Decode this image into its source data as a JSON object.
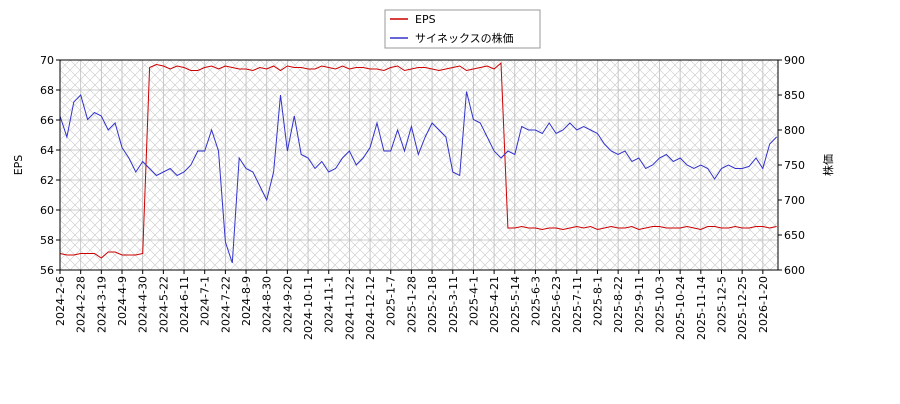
{
  "chart_data": {
    "type": "line",
    "categories": [
      "2024-2-6",
      null,
      null,
      "2024-2-28",
      null,
      null,
      "2024-3-19",
      null,
      null,
      "2024-4-9",
      null,
      null,
      "2024-4-30",
      null,
      null,
      "2024-5-22",
      null,
      null,
      "2024-6-11",
      null,
      null,
      "2024-7-1",
      null,
      null,
      "2024-7-22",
      null,
      null,
      "2024-8-9",
      null,
      null,
      "2024-8-30",
      null,
      null,
      "2024-9-20",
      null,
      null,
      "2024-10-11",
      null,
      null,
      "2024-11-1",
      null,
      null,
      "2024-11-22",
      null,
      null,
      "2024-12-12",
      null,
      null,
      "2025-1-7",
      null,
      null,
      "2025-1-28",
      null,
      null,
      "2025-2-18",
      null,
      null,
      "2025-3-11",
      null,
      null,
      "2025-4-1",
      null,
      null,
      "2025-4-21",
      null,
      null,
      "2025-5-14",
      null,
      null,
      "2025-6-3",
      null,
      null,
      "2025-6-23",
      null,
      null,
      "2025-7-11",
      null,
      null,
      "2025-8-1",
      null,
      null,
      "2025-8-22",
      null,
      null,
      "2025-9-11",
      null,
      null,
      "2025-10-3",
      null,
      null,
      "2025-10-24",
      null,
      null,
      "2025-11-14",
      null,
      null,
      "2025-12-5",
      null,
      null,
      "2025-12-25",
      null,
      null,
      "2026-1-20",
      null,
      null
    ],
    "series": [
      {
        "name": "EPS",
        "color": "#cc0000",
        "axis": "y",
        "values": [
          57.1,
          57.0,
          57.0,
          57.1,
          57.1,
          57.1,
          56.8,
          57.2,
          57.2,
          57.0,
          57.0,
          57.0,
          57.1,
          69.5,
          69.7,
          69.6,
          69.4,
          69.6,
          69.5,
          69.3,
          69.3,
          69.5,
          69.6,
          69.4,
          69.6,
          69.5,
          69.4,
          69.4,
          69.3,
          69.5,
          69.4,
          69.6,
          69.3,
          69.6,
          69.5,
          69.5,
          69.4,
          69.4,
          69.6,
          69.5,
          69.4,
          69.6,
          69.4,
          69.5,
          69.5,
          69.4,
          69.4,
          69.3,
          69.5,
          69.6,
          69.3,
          69.4,
          69.5,
          69.5,
          69.4,
          69.3,
          69.4,
          69.5,
          69.6,
          69.3,
          69.4,
          69.5,
          69.6,
          69.4,
          69.8,
          58.8,
          58.8,
          58.9,
          58.8,
          58.8,
          58.7,
          58.8,
          58.8,
          58.7,
          58.8,
          58.9,
          58.8,
          58.9,
          58.7,
          58.8,
          58.9,
          58.8,
          58.8,
          58.9,
          58.7,
          58.8,
          58.9,
          58.9,
          58.8,
          58.8,
          58.8,
          58.9,
          58.8,
          58.7,
          58.9,
          58.9,
          58.8,
          58.8,
          58.9,
          58.8,
          58.8,
          58.9,
          58.9,
          58.8,
          58.9
        ]
      },
      {
        "name": "サイネックスの株価",
        "color": "#3333cc",
        "axis": "y2",
        "values": [
          820,
          790,
          840,
          850,
          815,
          825,
          820,
          800,
          810,
          775,
          760,
          740,
          755,
          745,
          735,
          740,
          745,
          735,
          740,
          750,
          770,
          770,
          800,
          770,
          640,
          610,
          760,
          745,
          740,
          720,
          700,
          740,
          850,
          770,
          820,
          765,
          760,
          745,
          755,
          740,
          745,
          760,
          770,
          750,
          760,
          775,
          810,
          770,
          770,
          800,
          770,
          805,
          765,
          790,
          810,
          800,
          790,
          740,
          735,
          855,
          815,
          810,
          790,
          770,
          760,
          770,
          765,
          805,
          800,
          800,
          795,
          810,
          795,
          800,
          810,
          800,
          805,
          800,
          795,
          780,
          770,
          765,
          770,
          755,
          760,
          745,
          750,
          760,
          765,
          755,
          760,
          750,
          745,
          750,
          745,
          730,
          745,
          750,
          745,
          745,
          748,
          760,
          745,
          780,
          790
        ]
      }
    ],
    "ylabel": "EPS",
    "y2label": "株価",
    "ylim": [
      56,
      70
    ],
    "yticks": [
      56,
      58,
      60,
      62,
      64,
      66,
      68,
      70
    ],
    "y2lim": [
      600,
      900
    ],
    "y2ticks": [
      600,
      650,
      700,
      750,
      800,
      850,
      900
    ],
    "grid": true
  }
}
